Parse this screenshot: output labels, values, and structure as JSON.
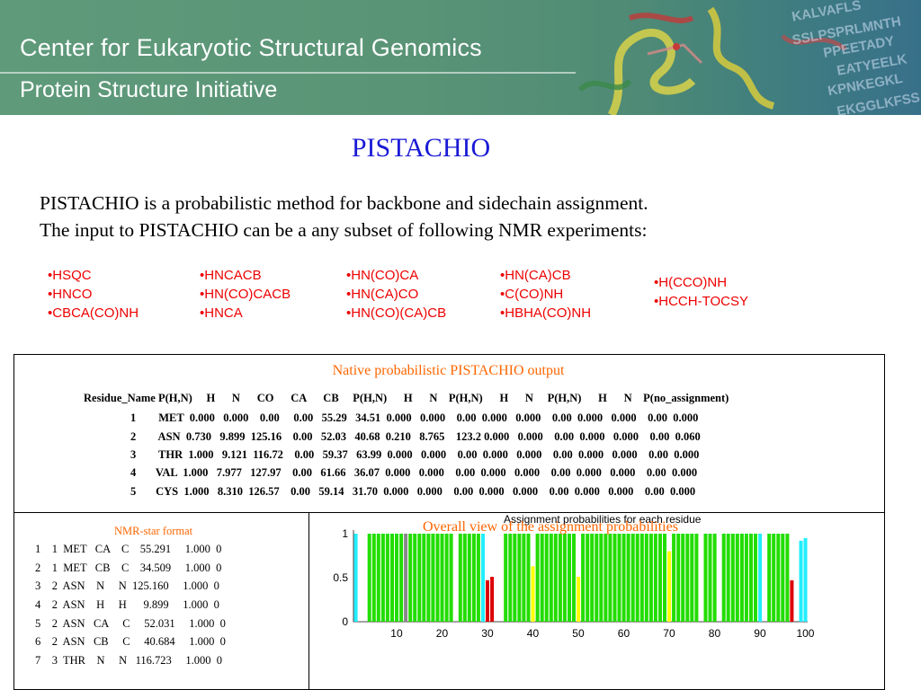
{
  "banner": {
    "line1": "Center for Eukaryotic Structural Genomics",
    "line2": "Protein Structure Initiative",
    "sequence_fragments": [
      "KALVAFLS",
      "SSLPSPRLMNTH",
      "PPEETADY",
      "EATYEELK",
      "KPNKEGKL",
      "EKGGLKFSS"
    ]
  },
  "title": "PISTACHIO",
  "intro": {
    "line1": "PISTACHIO is a probabilistic method for backbone and sidechain assignment.",
    "line2": "The input to PISTACHIO can be a any subset of following  NMR experiments:"
  },
  "experiments": [
    [
      "•HSQC",
      "•HNCO",
      "•CBCA(CO)NH"
    ],
    [
      "•HNCACB",
      "•HN(CO)CACB",
      "•HNCA"
    ],
    [
      "•HN(CO)CA",
      "•HN(CA)CO",
      "•HN(CO)(CA)CB"
    ],
    [
      "•HN(CA)CB",
      "•C(CO)NH",
      "•HBHA(CO)NH"
    ],
    [
      "•H(CCO)NH",
      "•HCCH-TOCSY"
    ]
  ],
  "native_output": {
    "title": "Native probabilistic PISTACHIO output",
    "header": "Residue_Name P(H,N)     H      N      CO      CA      CB     P(H,N)      H      N    P(H,N)      H      N     P(H,N)      H      N    P(no_assignment)",
    "rows": [
      "1        MET  0.000   0.000    0.00     0.00   55.29   34.51  0.000   0.000    0.00  0.000   0.000    0.00  0.000   0.000    0.00  0.000",
      "2        ASN  0.730   9.899  125.16    0.00   52.03   40.68  0.210   8.765    123.2 0.000   0.000    0.00  0.000   0.000    0.00  0.060",
      "3        THR  1.000   9.121  116.72    0.00   59.37   63.99  0.000   0.000    0.00  0.000   0.000    0.00  0.000   0.000    0.00  0.000",
      "4       VAL  1.000   7.977   127.97    0.00   61.66   36.07  0.000   0.000    0.00  0.000   0.000    0.00  0.000   0.000    0.00  0.000",
      "5       CYS  1.000   8.310  126.57    0.00   59.14   31.70  0.000   0.000    0.00  0.000   0.000    0.00  0.000   0.000    0.00  0.000"
    ]
  },
  "nmr_star": {
    "title": "NMR-star format",
    "rows": [
      "1    1  MET   CA    C    55.291     1.000  0",
      "2    1  MET   CB    C    34.509     1.000  0",
      "3    2  ASN    N     N  125.160     1.000  0",
      "4    2  ASN    H     H      9.899     1.000  0",
      "5    2  ASN   CA     C     52.031     1.000  0",
      "6    2  ASN   CB     C     40.684     1.000  0",
      "7    3  THR    N     N   116.723     1.000  0"
    ]
  },
  "overall_title": "Overall view of the assignment   probabilities",
  "colors": {
    "accent_red": "#ee0000",
    "title_blue": "#1a1ad6",
    "orange": "#ff6600",
    "bar_green": "#22dd00",
    "bar_cyan": "#22eeff",
    "bar_red": "#dd0000",
    "bar_yellow": "#ffff00",
    "bar_gray": "#888888"
  },
  "chart_data": {
    "type": "bar",
    "title": "Assignment probabilities for each residue",
    "xlim": [
      1,
      100
    ],
    "ylim": [
      0,
      1
    ],
    "xticks": [
      10,
      20,
      30,
      40,
      50,
      60,
      70,
      80,
      90,
      100
    ],
    "yticks": [
      0,
      0.5,
      1
    ],
    "x": [
      1,
      2,
      3,
      4,
      5,
      6,
      7,
      8,
      9,
      10,
      11,
      12,
      13,
      14,
      15,
      16,
      17,
      18,
      19,
      20,
      21,
      22,
      23,
      24,
      25,
      26,
      27,
      28,
      29,
      30,
      31,
      32,
      33,
      34,
      35,
      36,
      37,
      38,
      39,
      40,
      41,
      42,
      43,
      44,
      45,
      46,
      47,
      48,
      49,
      50,
      51,
      52,
      53,
      54,
      55,
      56,
      57,
      58,
      59,
      60,
      61,
      62,
      63,
      64,
      65,
      66,
      67,
      68,
      69,
      70,
      71,
      72,
      73,
      74,
      75,
      76,
      77,
      78,
      79,
      80,
      81,
      82,
      83,
      84,
      85,
      86,
      87,
      88,
      89,
      90,
      91,
      92,
      93,
      94,
      95,
      96,
      97,
      98,
      99,
      100
    ],
    "series": [
      {
        "color": "#22dd00",
        "values": [
          0,
          0,
          0,
          1,
          1,
          1,
          1,
          1,
          1,
          1,
          1,
          0,
          1,
          1,
          1,
          1,
          1,
          1,
          1,
          1,
          1,
          1,
          0,
          1,
          1,
          1,
          1,
          1,
          0,
          0,
          0,
          0,
          0,
          1,
          1,
          1,
          1,
          1,
          1,
          0,
          1,
          1,
          1,
          1,
          1,
          1,
          1,
          1,
          1,
          0,
          1,
          1,
          1,
          1,
          1,
          1,
          1,
          1,
          1,
          1,
          1,
          1,
          1,
          1,
          1,
          1,
          1,
          1,
          1,
          0,
          1,
          1,
          1,
          1,
          1,
          1,
          0,
          1,
          1,
          1,
          0,
          1,
          1,
          1,
          1,
          1,
          1,
          1,
          1,
          0,
          0,
          1,
          1,
          1,
          1,
          1,
          0,
          0,
          0,
          0
        ]
      },
      {
        "color": "#22eeff",
        "values": [
          1,
          0,
          0,
          0,
          0,
          0,
          0,
          0,
          0,
          0,
          0,
          0,
          0,
          0,
          0,
          0,
          0,
          0,
          0,
          0,
          0,
          0,
          0,
          0,
          0,
          0,
          0,
          0,
          1,
          0,
          0,
          0,
          0,
          0,
          0,
          0,
          0,
          0,
          0,
          0,
          0,
          0,
          0,
          0,
          0,
          0,
          0,
          0,
          0,
          0,
          0,
          0,
          0,
          0,
          0,
          0,
          0,
          0,
          0,
          0,
          0,
          0,
          0,
          0,
          0,
          0,
          0,
          0,
          0,
          0,
          0,
          0,
          0,
          0,
          0,
          0,
          0,
          0,
          0,
          0,
          0,
          0,
          0,
          0,
          0,
          0,
          0,
          0,
          0,
          1,
          0,
          0,
          0,
          0,
          0,
          0,
          0,
          0,
          0.92,
          0.95
        ]
      },
      {
        "color": "#dd0000",
        "values": [
          0,
          0,
          0,
          0,
          0,
          0,
          0,
          0,
          0,
          0,
          0,
          0,
          0,
          0,
          0,
          0,
          0,
          0,
          0,
          0,
          0,
          0,
          0,
          0,
          0,
          0,
          0,
          0,
          0,
          0.47,
          0.51,
          0,
          0,
          0,
          0,
          0,
          0,
          0,
          0,
          0,
          0,
          0,
          0,
          0,
          0,
          0,
          0,
          0,
          0,
          0,
          0,
          0,
          0,
          0,
          0,
          0,
          0,
          0,
          0,
          0,
          0,
          0,
          0,
          0,
          0,
          0,
          0,
          0,
          0,
          0,
          0,
          0,
          0,
          0,
          0,
          0,
          0,
          0,
          0,
          0,
          0,
          0,
          0,
          0,
          0,
          0,
          0,
          0,
          0,
          0,
          0,
          0,
          0,
          0,
          0,
          0,
          0.47,
          0,
          0,
          0
        ]
      },
      {
        "color": "#ffff00",
        "values": [
          0,
          0,
          0,
          0,
          0,
          0,
          0,
          0,
          0,
          0,
          0,
          0,
          0,
          0,
          0,
          0,
          0,
          0,
          0,
          0,
          0,
          0,
          0,
          0,
          0,
          0,
          0,
          0,
          0,
          0,
          0,
          0,
          0,
          0,
          0,
          0,
          0,
          0,
          0,
          0.63,
          0,
          0,
          0,
          0,
          0,
          0,
          0,
          0,
          0,
          0.51,
          0,
          0,
          0,
          0,
          0,
          0,
          0,
          0,
          0,
          0,
          0,
          0,
          0,
          0,
          0,
          0,
          0,
          0,
          0,
          0.8,
          0,
          0,
          0,
          0,
          0,
          0,
          0,
          0,
          0,
          0,
          0,
          0,
          0,
          0,
          0,
          0,
          0,
          0,
          0,
          0,
          0,
          0,
          0,
          0,
          0,
          0,
          0,
          0,
          0,
          0
        ]
      },
      {
        "color": "#888888",
        "values": [
          0,
          0,
          0,
          0,
          0,
          0,
          0,
          0,
          0,
          0,
          0,
          1,
          0,
          0,
          0,
          0,
          0,
          0,
          0,
          0,
          0,
          0,
          0,
          0,
          0,
          0,
          0,
          0,
          0,
          0,
          0,
          0,
          0,
          0,
          0,
          0,
          0,
          0,
          0,
          0,
          0,
          0,
          0,
          0,
          0,
          0,
          0,
          0,
          0,
          0,
          0,
          0,
          0,
          0,
          0,
          0,
          0,
          0,
          0,
          0,
          0,
          0,
          0,
          0,
          0,
          0,
          0,
          0,
          0,
          0,
          0,
          0,
          0,
          0,
          0,
          0,
          0,
          0,
          0,
          0,
          0,
          0,
          0,
          0,
          0,
          0,
          0,
          0,
          0,
          0,
          0,
          0,
          0,
          0,
          0,
          0,
          0,
          0,
          0,
          0
        ]
      }
    ]
  }
}
